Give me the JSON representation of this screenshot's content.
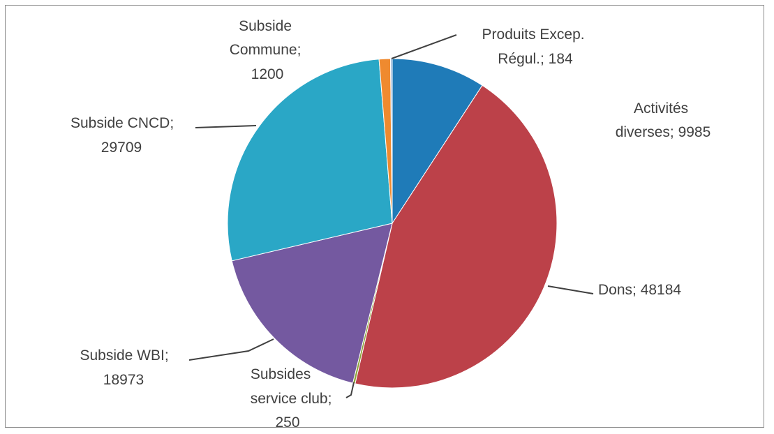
{
  "chart_data": {
    "type": "pie",
    "title": "",
    "legend": "none",
    "slices": [
      {
        "label": "Activités diverses",
        "value": 9985,
        "text": [
          "Activités",
          "diverses; 9985"
        ],
        "color": "#1f7bb8"
      },
      {
        "label": "Dons",
        "value": 48184,
        "text": [
          "Dons; 48184"
        ],
        "color": "#bc4149"
      },
      {
        "label": "Subsides service club",
        "value": 250,
        "text": [
          "Subsides",
          "service club;",
          "250"
        ],
        "color": "#8ca53b"
      },
      {
        "label": "Subside WBI",
        "value": 18973,
        "text": [
          "Subside WBI;",
          "18973"
        ],
        "color": "#7459a0"
      },
      {
        "label": "Subside CNCD",
        "value": 29709,
        "text": [
          "Subside CNCD;",
          "29709"
        ],
        "color": "#2aa7c6"
      },
      {
        "label": "Subside Commune",
        "value": 1200,
        "text": [
          "Subside",
          "Commune;",
          "1200"
        ],
        "color": "#ef8a2f"
      },
      {
        "label": "Produits Excep. Régul.",
        "value": 184,
        "text": [
          "Produits Excep.",
          "Régul.; 184"
        ],
        "color": "#93b3d8"
      }
    ]
  }
}
